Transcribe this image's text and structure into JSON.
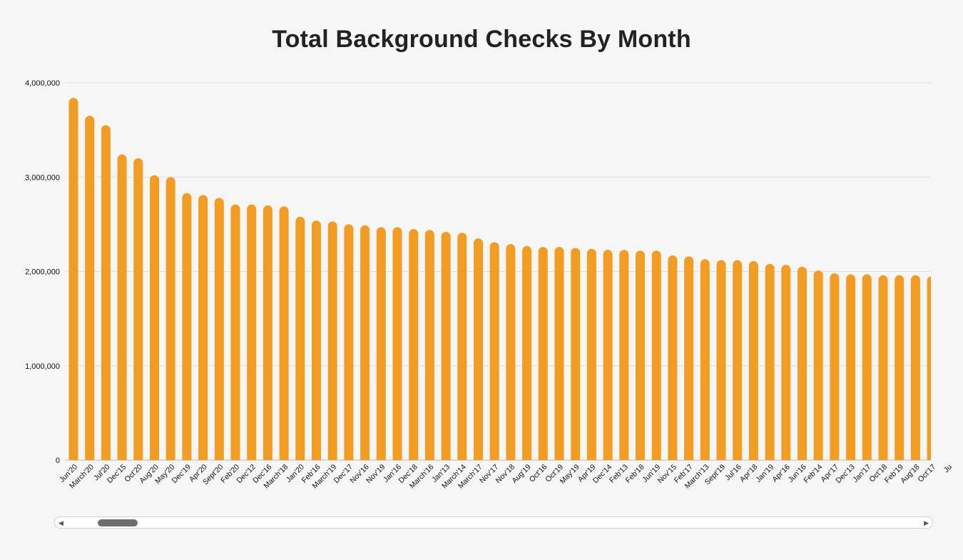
{
  "title": "Total Background Checks By Month",
  "colors": {
    "bar": "#f29d22",
    "grid": "#dddddd",
    "background": "#f6f6f6"
  },
  "scrollbar": {
    "left_arrow": "◀",
    "right_arrow": "▶"
  },
  "chart_data": {
    "type": "bar",
    "title": "Total Background Checks By Month",
    "xlabel": "",
    "ylabel": "",
    "ylim": [
      0,
      4000000
    ],
    "yticks": [
      0,
      1000000,
      2000000,
      3000000,
      4000000
    ],
    "ytick_labels": [
      "0",
      "1,000,000",
      "2,000,000",
      "3,000,000",
      "4,000,000"
    ],
    "grid": true,
    "categories": [
      "Jun'20",
      "March'20",
      "Jul'20",
      "Dec'15",
      "Oct'20",
      "Aug'20",
      "May'20",
      "Dec'19",
      "Apr'20",
      "Sept'20",
      "Feb'20",
      "Dec'12",
      "Dec'16",
      "March'18",
      "Jan'20",
      "Feb'16",
      "March'19",
      "Dec'17",
      "Nov'16",
      "Nov'19",
      "Jan'16",
      "Dec'18",
      "March'16",
      "Jan'13",
      "March'14",
      "March'17",
      "Nov'17",
      "Nov'18",
      "Aug'19",
      "Oct'16",
      "Oct'19",
      "May'19",
      "Apr'19",
      "Dec'14",
      "Feb'13",
      "Feb'18",
      "Jun'19",
      "Nov'15",
      "Feb'17",
      "March'13",
      "Sept'19",
      "Jul'16",
      "Apr'18",
      "Jan'19",
      "Apr'16",
      "Jun'16",
      "Feb'14",
      "Apr'17",
      "Dec'13",
      "Jan'17",
      "Oct'18",
      "Feb'19",
      "Aug'18",
      "Oct'17",
      "Ju"
    ],
    "values": [
      3840000,
      3650000,
      3550000,
      3240000,
      3200000,
      3020000,
      3000000,
      2830000,
      2810000,
      2780000,
      2710000,
      2710000,
      2700000,
      2690000,
      2580000,
      2540000,
      2530000,
      2500000,
      2490000,
      2470000,
      2470000,
      2450000,
      2440000,
      2420000,
      2410000,
      2350000,
      2310000,
      2290000,
      2270000,
      2260000,
      2260000,
      2250000,
      2240000,
      2230000,
      2230000,
      2220000,
      2220000,
      2170000,
      2160000,
      2130000,
      2120000,
      2120000,
      2110000,
      2080000,
      2070000,
      2050000,
      2010000,
      1980000,
      1970000,
      1970000,
      1960000,
      1960000,
      1960000,
      1950000,
      1940000
    ]
  }
}
